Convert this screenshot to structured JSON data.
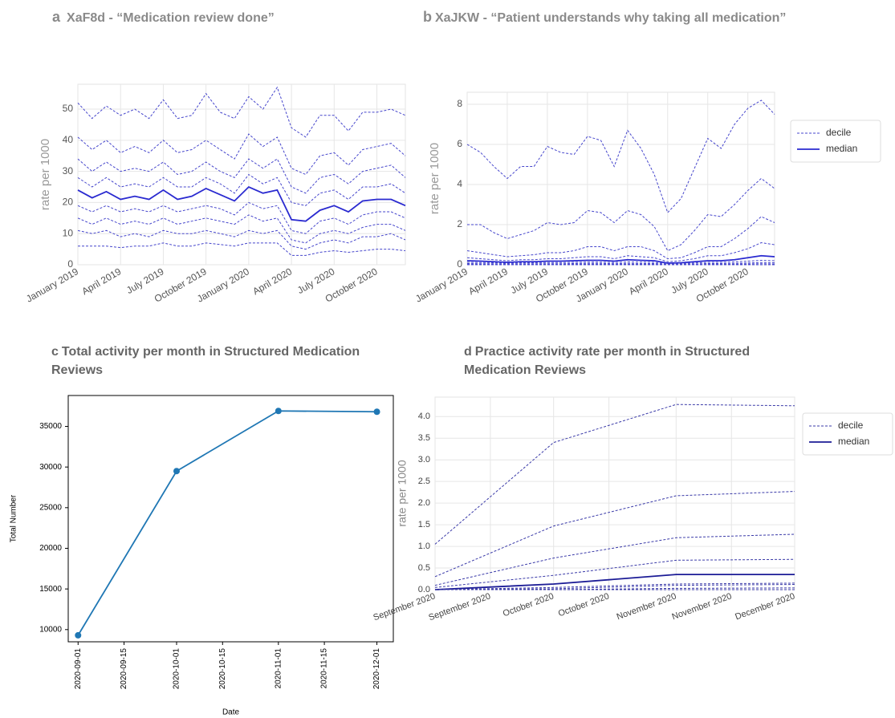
{
  "chart_data": [
    {
      "type": "line",
      "panel_label": "a",
      "title": "XaF8d - “Medication review done”",
      "ylabel": "rate per 1000",
      "categories": [
        "January 2019",
        null,
        null,
        "April 2019",
        null,
        null,
        "July 2019",
        null,
        null,
        "October 2019",
        null,
        null,
        "January 2020",
        null,
        null,
        "April 2020",
        null,
        null,
        "July 2020",
        null,
        null,
        "October 2020",
        null,
        null
      ],
      "ylim": [
        0,
        58
      ],
      "yticks": [
        0,
        10,
        20,
        30,
        40,
        50
      ],
      "grid": true,
      "series": [
        {
          "name": "decile",
          "color": "#4646cc",
          "linestyle": "dashed",
          "values": [
            52,
            47,
            51,
            48,
            50,
            47,
            53,
            47,
            48,
            55,
            49,
            47,
            54,
            50,
            57,
            44,
            41,
            48,
            48,
            43,
            49,
            49,
            50,
            48
          ]
        },
        {
          "color": "#4646cc",
          "linestyle": "dashed",
          "values": [
            41,
            37,
            40,
            36,
            38,
            36,
            40,
            36,
            37,
            40,
            37,
            34,
            42,
            38,
            41,
            31,
            29,
            35,
            36,
            32,
            37,
            38,
            39,
            35
          ]
        },
        {
          "color": "#4646cc",
          "linestyle": "dashed",
          "values": [
            34,
            30,
            33,
            30,
            31,
            30,
            33,
            29,
            30,
            33,
            30,
            28,
            34,
            31,
            34,
            25,
            23,
            28,
            29,
            26,
            30,
            31,
            32,
            28
          ]
        },
        {
          "color": "#4646cc",
          "linestyle": "dashed",
          "values": [
            28,
            25,
            28,
            25,
            26,
            25,
            28,
            25,
            25,
            28,
            26,
            23,
            29,
            26,
            28,
            20,
            19,
            23,
            24,
            21,
            25,
            25,
            26,
            23
          ]
        },
        {
          "name": "median",
          "color": "#2a2ad0",
          "linestyle": "solid",
          "values": [
            24,
            21.5,
            23.5,
            21,
            22,
            21,
            24,
            21,
            22,
            24.5,
            22.5,
            20.5,
            25,
            23,
            24,
            14.5,
            14,
            17.5,
            19,
            17,
            20.5,
            21,
            21,
            19
          ]
        },
        {
          "color": "#4646cc",
          "linestyle": "dashed",
          "values": [
            19,
            17,
            19,
            17,
            18,
            17,
            19,
            17,
            18,
            19,
            18,
            16,
            20,
            18,
            19,
            11,
            10,
            14,
            15,
            13,
            16,
            17,
            17,
            15
          ]
        },
        {
          "color": "#4646cc",
          "linestyle": "dashed",
          "values": [
            15,
            13,
            15,
            13,
            14,
            13,
            15,
            13,
            14,
            15,
            14,
            13,
            16,
            14,
            15,
            8,
            7,
            10,
            11,
            10,
            12,
            13,
            13,
            11
          ]
        },
        {
          "color": "#4646cc",
          "linestyle": "dashed",
          "values": [
            11,
            10,
            11,
            9,
            10,
            9,
            11,
            10,
            10,
            11,
            10,
            9,
            11,
            10,
            11,
            6,
            5,
            7,
            8,
            7,
            9,
            9,
            10,
            8
          ]
        },
        {
          "color": "#4646cc",
          "linestyle": "dashed",
          "values": [
            6,
            6,
            6,
            5.5,
            6,
            6,
            7,
            6,
            6,
            7,
            6.5,
            6,
            7,
            7,
            7,
            3,
            3,
            4,
            4.5,
            4,
            4.5,
            5,
            5,
            4.5
          ]
        }
      ]
    },
    {
      "type": "line",
      "panel_label": "b",
      "title": "XaJKW - “Patient understands why taking all medication”",
      "ylabel": "rate per 1000",
      "categories": [
        "January 2019",
        null,
        null,
        "April 2019",
        null,
        null,
        "July 2019",
        null,
        null,
        "October 2019",
        null,
        null,
        "January 2020",
        null,
        null,
        "April 2020",
        null,
        null,
        "July 2020",
        null,
        null,
        "October 2020",
        null,
        null
      ],
      "ylim": [
        0,
        8.6
      ],
      "yticks": [
        0,
        2,
        4,
        6,
        8
      ],
      "grid": true,
      "legend": "right",
      "series": [
        {
          "name": "decile",
          "color": "#4646cc",
          "linestyle": "dashed",
          "values": [
            6,
            5.6,
            4.9,
            4.3,
            4.9,
            4.9,
            5.9,
            5.6,
            5.5,
            6.4,
            6.2,
            4.9,
            6.7,
            5.8,
            4.5,
            2.6,
            3.3,
            4.8,
            6.3,
            5.8,
            7,
            7.8,
            8.2,
            7.5
          ]
        },
        {
          "color": "#4646cc",
          "linestyle": "dashed",
          "values": [
            2,
            2,
            1.6,
            1.3,
            1.5,
            1.7,
            2.1,
            2,
            2.1,
            2.7,
            2.6,
            2.1,
            2.7,
            2.5,
            1.9,
            0.7,
            1,
            1.7,
            2.5,
            2.4,
            3,
            3.7,
            4.3,
            3.8
          ]
        },
        {
          "color": "#4646cc",
          "linestyle": "dashed",
          "values": [
            0.7,
            0.6,
            0.5,
            0.4,
            0.45,
            0.5,
            0.6,
            0.6,
            0.7,
            0.9,
            0.9,
            0.7,
            0.9,
            0.9,
            0.7,
            0.3,
            0.35,
            0.6,
            0.9,
            0.9,
            1.3,
            1.8,
            2.4,
            2.1
          ]
        },
        {
          "color": "#4646cc",
          "linestyle": "dashed",
          "values": [
            0.35,
            0.3,
            0.25,
            0.2,
            0.25,
            0.25,
            0.3,
            0.3,
            0.35,
            0.4,
            0.4,
            0.3,
            0.45,
            0.4,
            0.35,
            0.15,
            0.2,
            0.3,
            0.45,
            0.45,
            0.6,
            0.8,
            1.1,
            1
          ]
        },
        {
          "name": "median",
          "color": "#2a2ad0",
          "linestyle": "solid",
          "values": [
            0.2,
            0.18,
            0.15,
            0.12,
            0.15,
            0.15,
            0.18,
            0.18,
            0.2,
            0.22,
            0.22,
            0.18,
            0.25,
            0.22,
            0.2,
            0.08,
            0.1,
            0.15,
            0.2,
            0.2,
            0.25,
            0.35,
            0.45,
            0.4
          ]
        },
        {
          "color": "#4646cc",
          "linestyle": "dashed",
          "values": [
            0.12,
            0.11,
            0.1,
            0.08,
            0.1,
            0.1,
            0.11,
            0.11,
            0.12,
            0.13,
            0.13,
            0.11,
            0.14,
            0.13,
            0.12,
            0.05,
            0.06,
            0.09,
            0.12,
            0.12,
            0.14,
            0.18,
            0.22,
            0.2
          ]
        },
        {
          "color": "#4646cc",
          "linestyle": "dashed",
          "values": [
            0.06,
            0.05,
            0.05,
            0.04,
            0.05,
            0.05,
            0.05,
            0.05,
            0.06,
            0.07,
            0.07,
            0.05,
            0.07,
            0.06,
            0.06,
            0.02,
            0.03,
            0.04,
            0.06,
            0.06,
            0.07,
            0.09,
            0.11,
            0.1
          ]
        },
        {
          "color": "#4646cc",
          "linestyle": "dashed",
          "values": [
            0.02,
            0.02,
            0.02,
            0.01,
            0.02,
            0.02,
            0.02,
            0.02,
            0.02,
            0.03,
            0.03,
            0.02,
            0.03,
            0.02,
            0.02,
            0,
            0.01,
            0.01,
            0.02,
            0.02,
            0.03,
            0.04,
            0.05,
            0.04
          ]
        },
        {
          "color": "#4646cc",
          "linestyle": "dashed",
          "values": [
            0,
            0,
            0,
            0,
            0,
            0,
            0,
            0,
            0,
            0,
            0,
            0,
            0,
            0,
            0,
            0,
            0,
            0,
            0,
            0,
            0,
            0,
            0,
            0
          ]
        }
      ]
    },
    {
      "type": "line",
      "panel_label": "c",
      "title": "Total activity per month in Structured Medication Reviews",
      "xlabel": "Date",
      "ylabel": "Total Number",
      "x": [
        "2020-09-01",
        "2020-10-01",
        "2020-11-01",
        "2020-12-01"
      ],
      "xlim": [
        "2020-08-29",
        "2020-12-06"
      ],
      "xticks": [
        "2020-09-01",
        "2020-09-15",
        "2020-10-01",
        "2020-10-15",
        "2020-11-01",
        "2020-11-15",
        "2020-12-01"
      ],
      "ylim": [
        8500,
        38800
      ],
      "yticks": [
        10000,
        15000,
        20000,
        25000,
        30000,
        35000
      ],
      "grid": false,
      "markers": true,
      "series": [
        {
          "color": "#1f77b4",
          "linestyle": "solid",
          "values": [
            9300,
            29500,
            36900,
            36800
          ]
        }
      ]
    },
    {
      "type": "line",
      "panel_label": "d",
      "title": "Practice activity rate per month in Structured Medication Reviews",
      "ylabel": "rate per 1000",
      "x": [
        "2020-09-01",
        "2020-10-01",
        "2020-11-01",
        "2020-12-01"
      ],
      "xlim": [
        "2020-09-01",
        "2020-12-01"
      ],
      "xticks": [
        {
          "value": "2020-09-01",
          "label": "September 2020"
        },
        {
          "value": "2020-09-15",
          "label": "September 2020"
        },
        {
          "value": "2020-10-01",
          "label": "October 2020"
        },
        {
          "value": "2020-10-15",
          "label": "October 2020"
        },
        {
          "value": "2020-11-01",
          "label": "November 2020"
        },
        {
          "value": "2020-11-15",
          "label": "November 2020"
        },
        {
          "value": "2020-12-01",
          "label": "December 2020"
        }
      ],
      "ylim": [
        0,
        4.45
      ],
      "yticks": [
        {
          "value": 0,
          "label": "0.0"
        },
        0.5,
        {
          "value": 1,
          "label": "1.0"
        },
        1.5,
        {
          "value": 2,
          "label": "2.0"
        },
        2.5,
        {
          "value": 3,
          "label": "3.0"
        },
        3.5,
        {
          "value": 4,
          "label": "4.0"
        }
      ],
      "grid": true,
      "legend": "right",
      "series": [
        {
          "name": "decile",
          "color": "#3a3aa8",
          "linestyle": "dashed",
          "values": [
            1.05,
            3.4,
            4.28,
            4.25
          ]
        },
        {
          "color": "#3a3aa8",
          "linestyle": "dashed",
          "values": [
            0.3,
            1.47,
            2.17,
            2.27
          ]
        },
        {
          "color": "#3a3aa8",
          "linestyle": "dashed",
          "values": [
            0.1,
            0.73,
            1.2,
            1.28
          ]
        },
        {
          "color": "#3a3aa8",
          "linestyle": "dashed",
          "values": [
            0.05,
            0.33,
            0.68,
            0.7
          ]
        },
        {
          "name": "median",
          "color": "#1c1c96",
          "linestyle": "solid",
          "values": [
            0,
            0.13,
            0.35,
            0.35
          ]
        },
        {
          "color": "#3a3aa8",
          "linestyle": "dashed",
          "values": [
            0,
            0.05,
            0.13,
            0.15
          ]
        },
        {
          "color": "#3a3aa8",
          "linestyle": "dashed",
          "values": [
            0,
            0.02,
            0.1,
            0.12
          ]
        },
        {
          "color": "#3a3aa8",
          "linestyle": "dashed",
          "values": [
            0,
            0,
            0.03,
            0.04
          ]
        },
        {
          "color": "#3a3aa8",
          "linestyle": "dashed",
          "values": [
            0,
            0,
            0,
            0
          ]
        }
      ]
    }
  ]
}
